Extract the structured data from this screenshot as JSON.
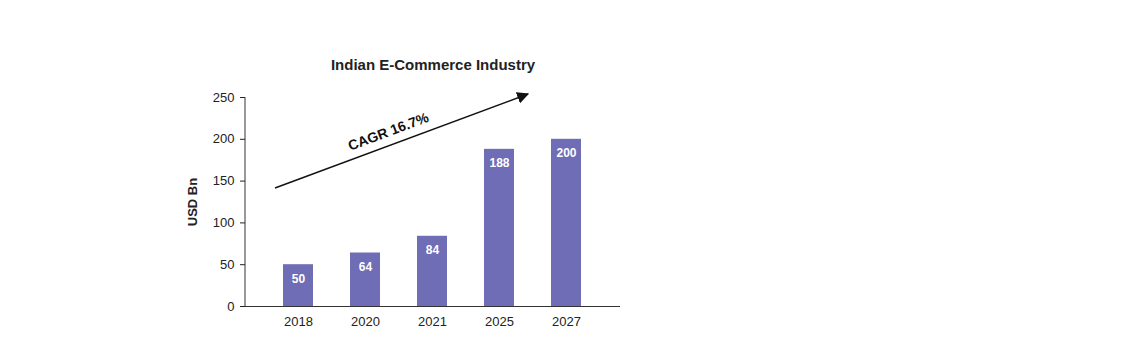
{
  "chart_data": {
    "type": "bar",
    "title": "Indian E-Commerce Industry",
    "y_label": "USD Bn",
    "categories": [
      "2018",
      "2020",
      "2021",
      "2025",
      "2027"
    ],
    "values": [
      50,
      64,
      84,
      188,
      200
    ],
    "color": "#6f6db5",
    "ylim": [
      0,
      250
    ],
    "yticks": [
      0,
      50,
      100,
      150,
      200,
      250
    ],
    "grid": false,
    "data_labels": true,
    "annotation": "CAGR 16.7%"
  }
}
